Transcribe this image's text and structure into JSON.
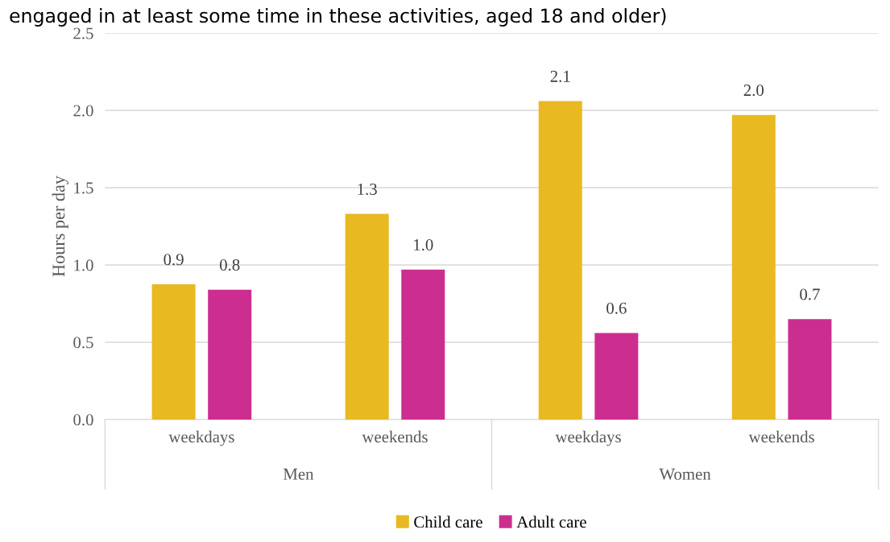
{
  "chart_data": {
    "type": "bar",
    "subtitle": "engaged in at least some time in these activities, aged 18 and older)",
    "ylabel": "Hours per day",
    "categories": [
      "weekdays",
      "weekends",
      "weekdays",
      "weekends"
    ],
    "series": [
      {
        "name": "Child care",
        "color": "#e8b921",
        "values": [
          0.875,
          1.33,
          2.06,
          1.97
        ],
        "value_labels": [
          "0.9",
          "1.3",
          "2.1",
          "2.0"
        ]
      },
      {
        "name": "Adult care",
        "color": "#cc2e8f",
        "values": [
          0.84,
          0.97,
          0.56,
          0.65
        ],
        "value_labels": [
          "0.8",
          "1.0",
          "0.6",
          "0.7"
        ]
      }
    ],
    "annotations": [
      "Men",
      "Women"
    ],
    "ylim": [
      0,
      2.5
    ],
    "yticks": [
      {
        "value": 0,
        "label": "0.0"
      },
      {
        "value": 0.5,
        "label": "0.5"
      },
      {
        "value": 1,
        "label": "1.0"
      },
      {
        "value": 1.5,
        "label": "1.5"
      },
      {
        "value": 2,
        "label": "2.0"
      },
      {
        "value": 2.5,
        "label": "2.5"
      }
    ],
    "grid": "y",
    "legend": "bottom"
  }
}
